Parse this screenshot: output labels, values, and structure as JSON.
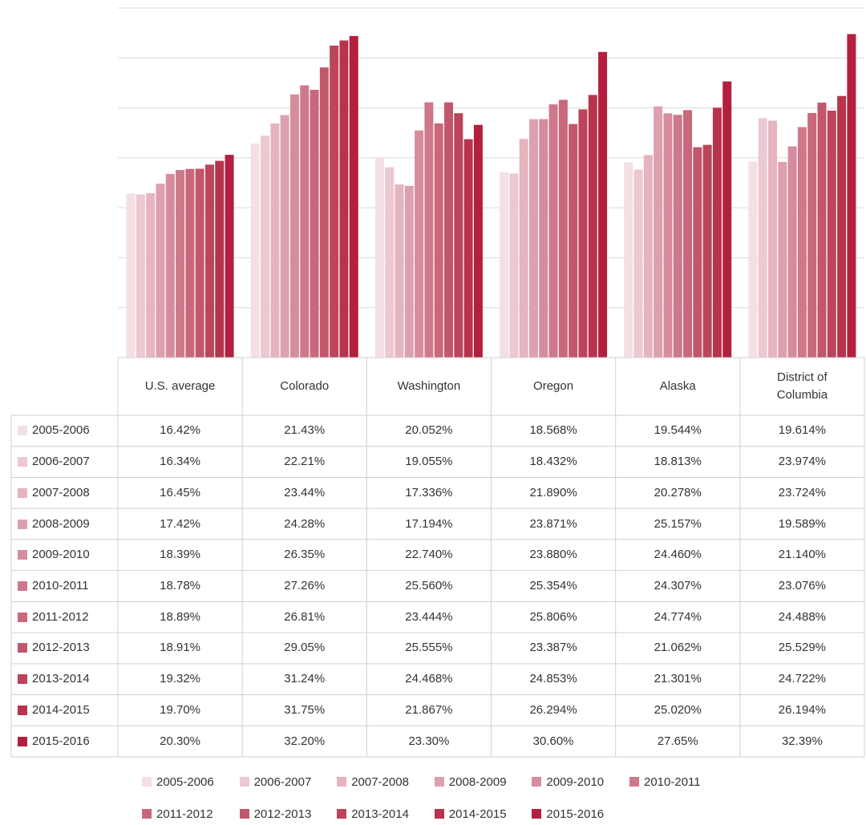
{
  "chart_data": {
    "type": "bar",
    "categories": [
      "U.S. average",
      "Colorado",
      "Washington",
      "Oregon",
      "Alaska",
      "District of Columbia"
    ],
    "ylim": [
      0,
      35
    ],
    "yticks": [
      0,
      5,
      10,
      15,
      20,
      25,
      30,
      35
    ],
    "grid": true,
    "series": [
      {
        "name": "2005-2006",
        "color": "#f3dfe4",
        "values": [
          16.42,
          21.43,
          20.052,
          18.568,
          19.544,
          19.614
        ],
        "value_labels": [
          "16.42%",
          "21.43%",
          "20.052%",
          "18.568%",
          "19.544%",
          "19.614%"
        ]
      },
      {
        "name": "2006-2007",
        "color": "#ecc8d1",
        "values": [
          16.34,
          22.21,
          19.055,
          18.432,
          18.813,
          23.974
        ],
        "value_labels": [
          "16.34%",
          "22.21%",
          "19.055%",
          "18.432%",
          "18.813%",
          "23.974%"
        ]
      },
      {
        "name": "2007-2008",
        "color": "#e5b4bf",
        "values": [
          16.45,
          23.44,
          17.336,
          21.89,
          20.278,
          23.724
        ],
        "value_labels": [
          "16.45%",
          "23.44%",
          "17.336%",
          "21.890%",
          "20.278%",
          "23.724%"
        ]
      },
      {
        "name": "2008-2009",
        "color": "#dda0ae",
        "values": [
          17.42,
          24.28,
          17.194,
          23.871,
          25.157,
          19.589
        ],
        "value_labels": [
          "17.42%",
          "24.28%",
          "17.194%",
          "23.871%",
          "25.157%",
          "19.589%"
        ]
      },
      {
        "name": "2009-2010",
        "color": "#d68c9d",
        "values": [
          18.39,
          26.35,
          22.74,
          23.88,
          24.46,
          21.14
        ],
        "value_labels": [
          "18.39%",
          "26.35%",
          "22.740%",
          "23.880%",
          "24.460%",
          "21.140%"
        ]
      },
      {
        "name": "2010-2011",
        "color": "#cf788b",
        "values": [
          18.78,
          27.26,
          25.56,
          25.354,
          24.307,
          23.076
        ],
        "value_labels": [
          "18.78%",
          "27.26%",
          "25.560%",
          "25.354%",
          "24.307%",
          "23.076%"
        ]
      },
      {
        "name": "2011-2012",
        "color": "#c9677b",
        "values": [
          18.89,
          26.81,
          23.444,
          25.806,
          24.774,
          24.488
        ],
        "value_labels": [
          "18.89%",
          "26.81%",
          "23.444%",
          "25.806%",
          "24.774%",
          "24.488%"
        ]
      },
      {
        "name": "2012-2013",
        "color": "#c2566b",
        "values": [
          18.91,
          29.05,
          25.555,
          23.387,
          21.062,
          25.529
        ],
        "value_labels": [
          "18.91%",
          "29.05%",
          "25.555%",
          "23.387%",
          "21.062%",
          "25.529%"
        ]
      },
      {
        "name": "2013-2014",
        "color": "#bc445b",
        "values": [
          19.32,
          31.24,
          24.468,
          24.853,
          21.301,
          24.722
        ],
        "value_labels": [
          "19.32%",
          "31.24%",
          "24.468%",
          "24.853%",
          "21.301%",
          "24.722%"
        ]
      },
      {
        "name": "2014-2015",
        "color": "#b8334c",
        "values": [
          19.7,
          31.75,
          21.867,
          26.294,
          25.02,
          26.194
        ],
        "value_labels": [
          "19.70%",
          "31.75%",
          "21.867%",
          "26.294%",
          "25.020%",
          "26.194%"
        ]
      },
      {
        "name": "2015-2016",
        "color": "#b31f3e",
        "values": [
          20.3,
          32.2,
          23.3,
          30.6,
          27.65,
          32.39
        ],
        "value_labels": [
          "20.30%",
          "32.20%",
          "23.30%",
          "30.60%",
          "27.65%",
          "32.39%"
        ]
      }
    ]
  }
}
